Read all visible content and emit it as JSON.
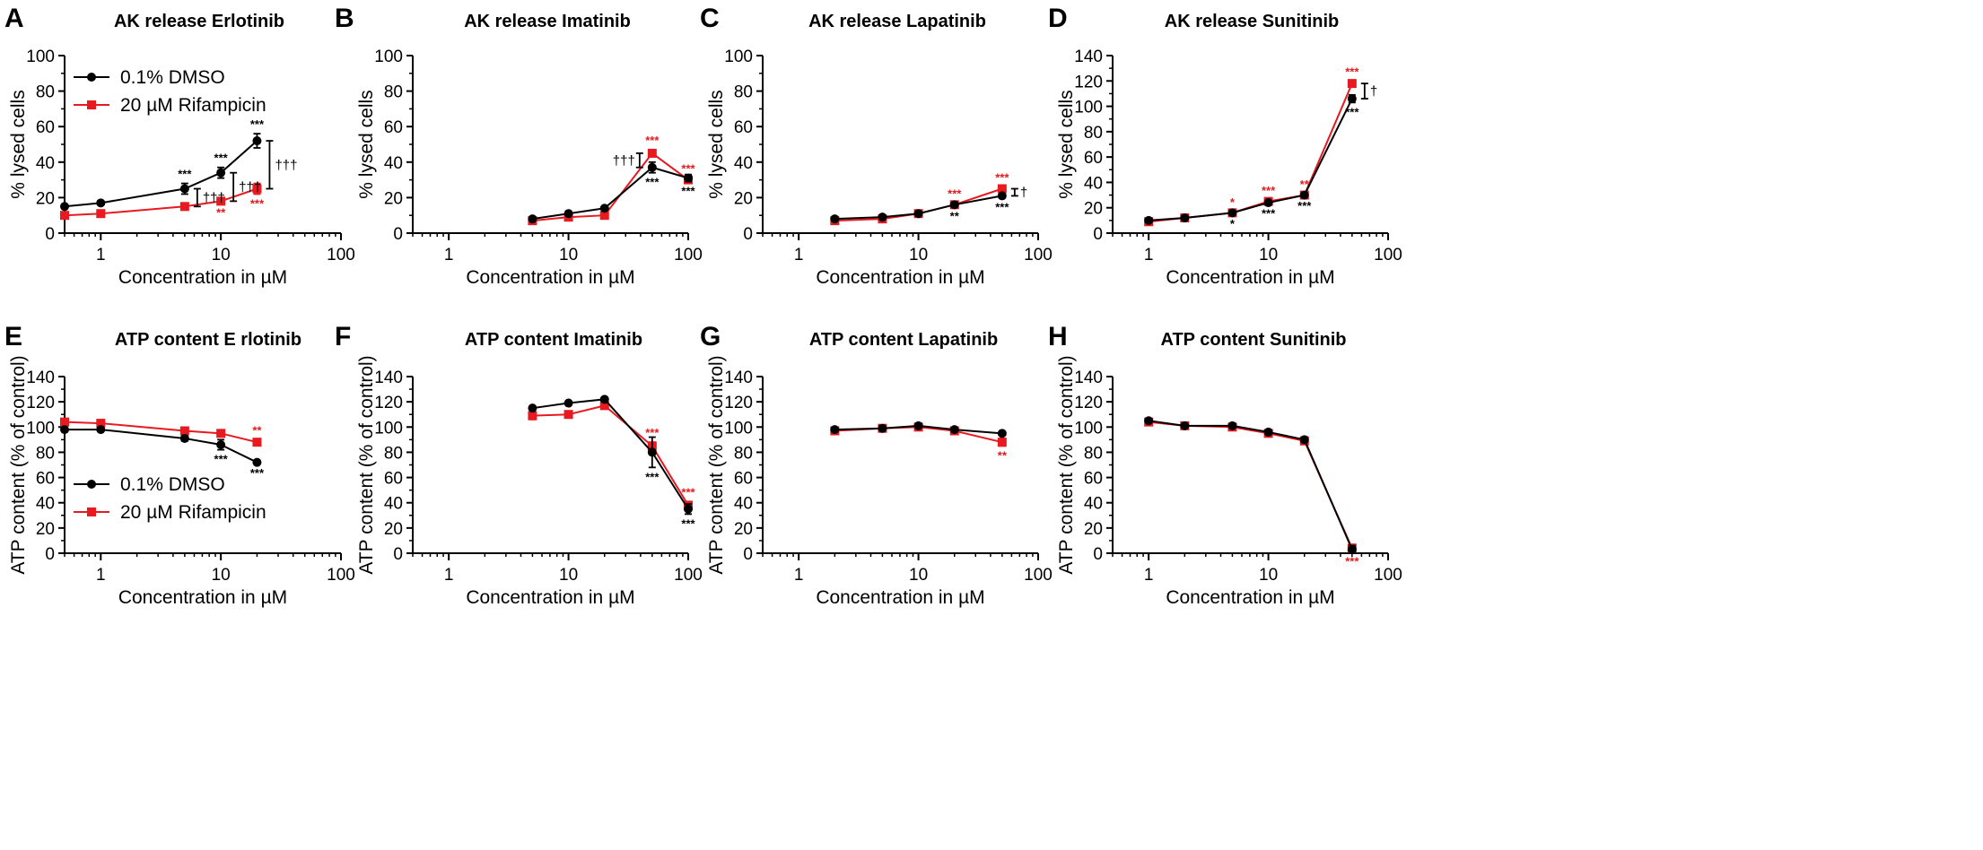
{
  "colors": {
    "dmso": "#000000",
    "rif": "#e8191f"
  },
  "chart_data": [
    {
      "type": "line",
      "letter": "A",
      "title": "AK release Erlotinib",
      "xlabel": "Concentration in µM",
      "ylabel": "% lysed cells",
      "xscale": "log",
      "xlim": [
        0.5,
        100
      ],
      "ylim": [
        0,
        100
      ],
      "xticks": [
        1,
        10,
        100
      ],
      "xtick_labels": [
        "1",
        "10",
        "100"
      ],
      "yticks": [
        0,
        20,
        40,
        60,
        80,
        100
      ],
      "ytick_labels": [
        "0",
        "20",
        "40",
        "60",
        "80",
        "100"
      ],
      "legend": {
        "location": "top-left",
        "entries": [
          "0.1% DMSO",
          "20 µM Rifampicin"
        ]
      },
      "series": [
        {
          "name": "0.1% DMSO",
          "x": [
            0.5,
            1,
            5,
            10,
            20
          ],
          "y": [
            15,
            17,
            25,
            34,
            52
          ],
          "err": [
            1,
            1,
            3,
            3,
            4
          ]
        },
        {
          "name": "20 µM Rifampicin",
          "x": [
            0.5,
            1,
            5,
            10,
            20
          ],
          "y": [
            10,
            11,
            15,
            18,
            25
          ],
          "err": [
            1,
            1,
            1,
            1,
            3
          ]
        }
      ],
      "annotations": [
        {
          "text": "***",
          "series": 0,
          "x": 5,
          "pos": "above"
        },
        {
          "text": "***",
          "series": 0,
          "x": 10,
          "pos": "above"
        },
        {
          "text": "***",
          "series": 0,
          "x": 20,
          "pos": "above"
        },
        {
          "text": "**",
          "series": 1,
          "x": 10,
          "pos": "below"
        },
        {
          "text": "***",
          "series": 1,
          "x": 20,
          "pos": "below"
        }
      ],
      "comparisons": [
        {
          "x": 5,
          "text": "†††"
        },
        {
          "x": 10,
          "text": "†††"
        },
        {
          "x": 20,
          "text": "†††"
        }
      ]
    },
    {
      "type": "line",
      "letter": "B",
      "title": "AK release Imatinib",
      "xlabel": "Concentration in µM",
      "ylabel": "% lysed cells",
      "xscale": "log",
      "xlim": [
        0.5,
        100
      ],
      "ylim": [
        0,
        100
      ],
      "xticks": [
        1,
        10,
        100
      ],
      "xtick_labels": [
        "1",
        "10",
        "100"
      ],
      "yticks": [
        0,
        20,
        40,
        60,
        80,
        100
      ],
      "ytick_labels": [
        "0",
        "20",
        "40",
        "60",
        "80",
        "100"
      ],
      "series": [
        {
          "name": "0.1% DMSO",
          "x": [
            5,
            10,
            20,
            50,
            100
          ],
          "y": [
            8,
            11,
            14,
            37,
            31
          ],
          "err": [
            0,
            0,
            0,
            3,
            2
          ]
        },
        {
          "name": "20 µM Rifampicin",
          "x": [
            5,
            10,
            20,
            50,
            100
          ],
          "y": [
            7,
            9,
            10,
            45,
            30
          ],
          "err": [
            0,
            0,
            0,
            2,
            1
          ]
        }
      ],
      "annotations": [
        {
          "text": "***",
          "series": 1,
          "x": 50,
          "pos": "above"
        },
        {
          "text": "***",
          "series": 0,
          "x": 50,
          "pos": "below"
        },
        {
          "text": "***",
          "series": 1,
          "x": 100,
          "pos": "above"
        },
        {
          "text": "***",
          "series": 0,
          "x": 100,
          "pos": "below"
        }
      ],
      "comparisons": [
        {
          "x": 50,
          "text": "†††",
          "side": "left"
        }
      ]
    },
    {
      "type": "line",
      "letter": "C",
      "title": "AK release Lapatinib",
      "xlabel": "Concentration in µM",
      "ylabel": "% lysed cells",
      "xscale": "log",
      "xlim": [
        0.5,
        100
      ],
      "ylim": [
        0,
        100
      ],
      "xticks": [
        1,
        10,
        100
      ],
      "xtick_labels": [
        "1",
        "10",
        "100"
      ],
      "yticks": [
        0,
        20,
        40,
        60,
        80,
        100
      ],
      "ytick_labels": [
        "0",
        "20",
        "40",
        "60",
        "80",
        "100"
      ],
      "series": [
        {
          "name": "0.1% DMSO",
          "x": [
            2,
            5,
            10,
            20,
            50
          ],
          "y": [
            8,
            9,
            11,
            16,
            21
          ],
          "err": [
            0,
            0,
            0,
            1,
            1
          ]
        },
        {
          "name": "20 µM Rifampicin",
          "x": [
            2,
            5,
            10,
            20,
            50
          ],
          "y": [
            7,
            8,
            11,
            16,
            25
          ],
          "err": [
            0,
            0,
            0,
            1,
            1
          ]
        }
      ],
      "annotations": [
        {
          "text": "***",
          "series": 1,
          "x": 20,
          "pos": "above"
        },
        {
          "text": "**",
          "series": 0,
          "x": 20,
          "pos": "below"
        },
        {
          "text": "***",
          "series": 1,
          "x": 50,
          "pos": "above"
        },
        {
          "text": "***",
          "series": 0,
          "x": 50,
          "pos": "below"
        }
      ],
      "comparisons": [
        {
          "x": 50,
          "text": "†"
        }
      ]
    },
    {
      "type": "line",
      "letter": "D",
      "title": "AK release Sunitinib",
      "xlabel": "Concentration in µM",
      "ylabel": "% lysed cells",
      "xscale": "log",
      "xlim": [
        0.5,
        100
      ],
      "ylim": [
        0,
        140
      ],
      "xticks": [
        1,
        10,
        100
      ],
      "xtick_labels": [
        "1",
        "10",
        "100"
      ],
      "yticks": [
        0,
        20,
        40,
        60,
        80,
        100,
        120,
        140
      ],
      "ytick_labels": [
        "0",
        "20",
        "40",
        "60",
        "80",
        "100",
        "120",
        "140"
      ],
      "series": [
        {
          "name": "0.1% DMSO",
          "x": [
            1,
            2,
            5,
            10,
            20,
            50
          ],
          "y": [
            10,
            12,
            16,
            24,
            30,
            106
          ],
          "err": [
            0,
            0,
            1,
            1,
            1,
            3
          ]
        },
        {
          "name": "20 µM Rifampicin",
          "x": [
            1,
            2,
            5,
            10,
            20,
            50
          ],
          "y": [
            9,
            12,
            16,
            25,
            30,
            118
          ],
          "err": [
            0,
            0,
            1,
            1,
            1,
            2
          ]
        }
      ],
      "annotations": [
        {
          "text": "*",
          "series": 1,
          "x": 5,
          "pos": "above"
        },
        {
          "text": "*",
          "series": 0,
          "x": 5,
          "pos": "below"
        },
        {
          "text": "***",
          "series": 1,
          "x": 10,
          "pos": "above"
        },
        {
          "text": "***",
          "series": 0,
          "x": 10,
          "pos": "below"
        },
        {
          "text": "**",
          "series": 1,
          "x": 20,
          "pos": "above"
        },
        {
          "text": "***",
          "series": 0,
          "x": 20,
          "pos": "below"
        },
        {
          "text": "***",
          "series": 1,
          "x": 50,
          "pos": "above"
        },
        {
          "text": "***",
          "series": 0,
          "x": 50,
          "pos": "below"
        }
      ],
      "comparisons": [
        {
          "x": 50,
          "text": "†"
        }
      ]
    },
    {
      "type": "line",
      "letter": "E",
      "title": "ATP content E rlotinib",
      "xlabel": "Concentration in µM",
      "ylabel": "ATP content (% of control)",
      "xscale": "log",
      "xlim": [
        0.5,
        100
      ],
      "ylim": [
        0,
        140
      ],
      "xticks": [
        1,
        10,
        100
      ],
      "xtick_labels": [
        "1",
        "10",
        "100"
      ],
      "yticks": [
        0,
        20,
        40,
        60,
        80,
        100,
        120,
        140
      ],
      "ytick_labels": [
        "0",
        "20",
        "40",
        "60",
        "80",
        "100",
        "120",
        "140"
      ],
      "legend": {
        "location": "bottom-left",
        "entries": [
          "0.1% DMSO",
          "20 µM Rifampicin"
        ]
      },
      "series": [
        {
          "name": "0.1% DMSO",
          "x": [
            0.5,
            1,
            5,
            10,
            20
          ],
          "y": [
            98,
            98,
            91,
            86,
            72
          ],
          "err": [
            1,
            1,
            2,
            4,
            1
          ]
        },
        {
          "name": "20 µM Rifampicin",
          "x": [
            0.5,
            1,
            5,
            10,
            20
          ],
          "y": [
            104,
            103,
            97,
            95,
            88
          ],
          "err": [
            1,
            1,
            1,
            1,
            2
          ]
        }
      ],
      "annotations": [
        {
          "text": "**",
          "series": 1,
          "x": 20,
          "pos": "above"
        },
        {
          "text": "***",
          "series": 0,
          "x": 10,
          "pos": "below"
        },
        {
          "text": "***",
          "series": 0,
          "x": 20,
          "pos": "below"
        }
      ]
    },
    {
      "type": "line",
      "letter": "F",
      "title": "ATP content Imatinib",
      "xlabel": "Concentration in µM",
      "ylabel": "ATP content (% of control)",
      "xscale": "log",
      "xlim": [
        0.5,
        100
      ],
      "ylim": [
        0,
        140
      ],
      "xticks": [
        1,
        10,
        100
      ],
      "xtick_labels": [
        "1",
        "10",
        "100"
      ],
      "yticks": [
        0,
        20,
        40,
        60,
        80,
        100,
        120,
        140
      ],
      "ytick_labels": [
        "0",
        "20",
        "40",
        "60",
        "80",
        "100",
        "120",
        "140"
      ],
      "series": [
        {
          "name": "0.1% DMSO",
          "x": [
            5,
            10,
            20,
            50,
            100
          ],
          "y": [
            115,
            119,
            122,
            80,
            35
          ],
          "err": [
            1,
            1,
            1,
            12,
            4
          ]
        },
        {
          "name": "20 µM Rifampicin",
          "x": [
            5,
            10,
            20,
            50,
            100
          ],
          "y": [
            109,
            110,
            117,
            85,
            38
          ],
          "err": [
            3,
            1,
            1,
            3,
            3
          ]
        }
      ],
      "annotations": [
        {
          "text": "***",
          "series": 1,
          "x": 50,
          "pos": "above"
        },
        {
          "text": "***",
          "series": 0,
          "x": 50,
          "pos": "below"
        },
        {
          "text": "***",
          "series": 1,
          "x": 100,
          "pos": "above"
        },
        {
          "text": "***",
          "series": 0,
          "x": 100,
          "pos": "below"
        }
      ]
    },
    {
      "type": "line",
      "letter": "G",
      "title": "ATP content Lapatinib",
      "xlabel": "Concentration in µM",
      "ylabel": "ATP content (% of control)",
      "xscale": "log",
      "xlim": [
        0.5,
        100
      ],
      "ylim": [
        0,
        140
      ],
      "xticks": [
        1,
        10,
        100
      ],
      "xtick_labels": [
        "1",
        "10",
        "100"
      ],
      "yticks": [
        0,
        20,
        40,
        60,
        80,
        100,
        120,
        140
      ],
      "ytick_labels": [
        "0",
        "20",
        "40",
        "60",
        "80",
        "100",
        "120",
        "140"
      ],
      "series": [
        {
          "name": "0.1% DMSO",
          "x": [
            2,
            5,
            10,
            20,
            50
          ],
          "y": [
            98,
            99,
            101,
            98,
            95
          ],
          "err": [
            1,
            1,
            1,
            1,
            1
          ]
        },
        {
          "name": "20 µM Rifampicin",
          "x": [
            2,
            5,
            10,
            20,
            50
          ],
          "y": [
            97,
            99,
            100,
            97,
            88
          ],
          "err": [
            1,
            1,
            1,
            1,
            3
          ]
        }
      ],
      "annotations": [
        {
          "text": "**",
          "series": 1,
          "x": 50,
          "pos": "below"
        }
      ]
    },
    {
      "type": "line",
      "letter": "H",
      "title": "ATP content Sunitinib",
      "xlabel": "Concentration in µM",
      "ylabel": "ATP content (% of control)",
      "xscale": "log",
      "xlim": [
        0.5,
        100
      ],
      "ylim": [
        0,
        140
      ],
      "xticks": [
        1,
        10,
        100
      ],
      "xtick_labels": [
        "1",
        "10",
        "100"
      ],
      "yticks": [
        0,
        20,
        40,
        60,
        80,
        100,
        120,
        140
      ],
      "ytick_labels": [
        "0",
        "20",
        "40",
        "60",
        "80",
        "100",
        "120",
        "140"
      ],
      "series": [
        {
          "name": "0.1% DMSO",
          "x": [
            1,
            2,
            5,
            10,
            20,
            50
          ],
          "y": [
            105,
            101,
            101,
            96,
            90,
            3
          ],
          "err": [
            1,
            1,
            1,
            1,
            2,
            3
          ]
        },
        {
          "name": "20 µM Rifampicin",
          "x": [
            1,
            2,
            5,
            10,
            20,
            50
          ],
          "y": [
            104,
            101,
            100,
            95,
            89,
            4
          ],
          "err": [
            1,
            1,
            1,
            1,
            2,
            3
          ]
        }
      ],
      "annotations": [
        {
          "text": "***",
          "series": 1,
          "x": 50,
          "pos": "below"
        }
      ]
    }
  ]
}
